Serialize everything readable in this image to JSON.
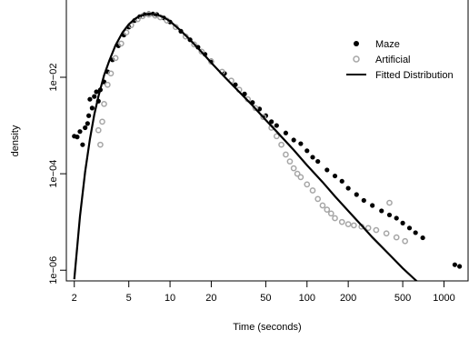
{
  "chart_data": {
    "type": "scatter",
    "xlabel": "Time (seconds)",
    "ylabel": "density",
    "x_scale": "log",
    "y_scale": "log",
    "xlim": [
      1.75,
      1500
    ],
    "ylim": [
      6e-07,
      0.4
    ],
    "x_ticks": [
      2,
      5,
      10,
      20,
      50,
      100,
      200,
      500,
      1000
    ],
    "x_tick_labels": [
      "2",
      "5",
      "10",
      "20",
      "50",
      "100",
      "200",
      "500",
      "1000"
    ],
    "y_ticks": [
      1e-06,
      0.0001,
      0.01
    ],
    "y_tick_labels": [
      "1e−06",
      "1e−04",
      "1e−02"
    ],
    "legend": {
      "position": "top-right",
      "entries": [
        "Maze",
        "Artificial",
        "Fitted Distribution"
      ]
    },
    "series": [
      {
        "name": "Maze",
        "marker": "filled-circle",
        "color": "#000000",
        "points": [
          [
            2,
            0.0006
          ],
          [
            2.1,
            0.00058
          ],
          [
            2.2,
            0.00075
          ],
          [
            2.3,
            0.0004
          ],
          [
            2.4,
            0.0009
          ],
          [
            2.5,
            0.0011
          ],
          [
            2.55,
            0.0016
          ],
          [
            2.6,
            0.0035
          ],
          [
            2.7,
            0.0023
          ],
          [
            2.8,
            0.004
          ],
          [
            2.9,
            0.005
          ],
          [
            3.0,
            0.0032
          ],
          [
            3.1,
            0.0055
          ],
          [
            3.3,
            0.008
          ],
          [
            3.5,
            0.013
          ],
          [
            3.8,
            0.023
          ],
          [
            4.2,
            0.045
          ],
          [
            4.6,
            0.075
          ],
          [
            5.0,
            0.11
          ],
          [
            5.5,
            0.15
          ],
          [
            6.0,
            0.18
          ],
          [
            6.5,
            0.2
          ],
          [
            7.0,
            0.21
          ],
          [
            7.5,
            0.205
          ],
          [
            8.0,
            0.2
          ],
          [
            9.0,
            0.17
          ],
          [
            10,
            0.14
          ],
          [
            12,
            0.09
          ],
          [
            14,
            0.06
          ],
          [
            16,
            0.042
          ],
          [
            18,
            0.03
          ],
          [
            20,
            0.022
          ],
          [
            25,
            0.012
          ],
          [
            30,
            0.007
          ],
          [
            35,
            0.0045
          ],
          [
            40,
            0.003
          ],
          [
            45,
            0.0022
          ],
          [
            50,
            0.0016
          ],
          [
            55,
            0.0012
          ],
          [
            60,
            0.001
          ],
          [
            70,
            0.0007
          ],
          [
            80,
            0.0005
          ],
          [
            90,
            0.00042
          ],
          [
            100,
            0.0003
          ],
          [
            110,
            0.00022
          ],
          [
            120,
            0.00018
          ],
          [
            140,
            0.00012
          ],
          [
            160,
            9e-05
          ],
          [
            180,
            7e-05
          ],
          [
            200,
            5e-05
          ],
          [
            230,
            3.7e-05
          ],
          [
            260,
            2.8e-05
          ],
          [
            300,
            2.2e-05
          ],
          [
            350,
            1.7e-05
          ],
          [
            400,
            1.4e-05
          ],
          [
            450,
            1.2e-05
          ],
          [
            500,
            9.5e-06
          ],
          [
            560,
            7.5e-06
          ],
          [
            620,
            6e-06
          ],
          [
            700,
            4.7e-06
          ],
          [
            1200,
            1.3e-06
          ],
          [
            1300,
            1.2e-06
          ]
        ]
      },
      {
        "name": "Artificial",
        "marker": "open-circle",
        "color": "#a6a6a6",
        "points": [
          [
            3.0,
            0.0008
          ],
          [
            3.1,
            0.0004
          ],
          [
            3.2,
            0.0012
          ],
          [
            3.3,
            0.0028
          ],
          [
            3.5,
            0.007
          ],
          [
            3.7,
            0.012
          ],
          [
            4.0,
            0.025
          ],
          [
            4.4,
            0.05
          ],
          [
            4.8,
            0.085
          ],
          [
            5.2,
            0.12
          ],
          [
            5.8,
            0.16
          ],
          [
            6.3,
            0.185
          ],
          [
            7.0,
            0.2
          ],
          [
            7.8,
            0.19
          ],
          [
            8.5,
            0.175
          ],
          [
            9.5,
            0.15
          ],
          [
            11,
            0.11
          ],
          [
            13,
            0.07
          ],
          [
            15,
            0.048
          ],
          [
            17,
            0.034
          ],
          [
            20,
            0.021
          ],
          [
            24,
            0.013
          ],
          [
            28,
            0.0085
          ],
          [
            32,
            0.0055
          ],
          [
            37,
            0.0035
          ],
          [
            42,
            0.0023
          ],
          [
            48,
            0.0015
          ],
          [
            55,
            0.0009
          ],
          [
            60,
            0.0006
          ],
          [
            65,
            0.0004
          ],
          [
            70,
            0.00025
          ],
          [
            75,
            0.00018
          ],
          [
            80,
            0.00013
          ],
          [
            85,
            0.0001
          ],
          [
            90,
            8.5e-05
          ],
          [
            100,
            6e-05
          ],
          [
            110,
            4.5e-05
          ],
          [
            120,
            3e-05
          ],
          [
            130,
            2.2e-05
          ],
          [
            140,
            1.8e-05
          ],
          [
            150,
            1.5e-05
          ],
          [
            160,
            1.2e-05
          ],
          [
            180,
            1e-05
          ],
          [
            200,
            9e-06
          ],
          [
            220,
            8.5e-06
          ],
          [
            250,
            8e-06
          ],
          [
            280,
            7.5e-06
          ],
          [
            320,
            6.8e-06
          ],
          [
            380,
            5.8e-06
          ],
          [
            400,
            2.5e-05
          ],
          [
            450,
            4.8e-06
          ],
          [
            520,
            4e-06
          ]
        ]
      }
    ],
    "fitted_curve": {
      "name": "Fitted Distribution",
      "color": "#000000",
      "points": [
        [
          2.0,
          6.5e-07
        ],
        [
          2.2,
          1.3e-05
        ],
        [
          2.4,
          0.00011
        ],
        [
          2.6,
          0.00052
        ],
        [
          2.8,
          0.0017
        ],
        [
          3.0,
          0.004
        ],
        [
          3.3,
          0.011
        ],
        [
          3.6,
          0.022
        ],
        [
          4.0,
          0.046
        ],
        [
          4.5,
          0.085
        ],
        [
          5.0,
          0.125
        ],
        [
          5.5,
          0.16
        ],
        [
          6.0,
          0.185
        ],
        [
          6.5,
          0.2
        ],
        [
          7.0,
          0.207
        ],
        [
          7.5,
          0.206
        ],
        [
          8.0,
          0.2
        ],
        [
          9.0,
          0.175
        ],
        [
          10,
          0.145
        ],
        [
          12,
          0.092
        ],
        [
          14,
          0.06
        ],
        [
          16,
          0.04
        ],
        [
          18,
          0.028
        ],
        [
          20,
          0.02
        ],
        [
          25,
          0.0102
        ],
        [
          30,
          0.006
        ],
        [
          40,
          0.0026
        ],
        [
          50,
          0.0013
        ],
        [
          60,
          0.00075
        ],
        [
          80,
          0.00031
        ],
        [
          100,
          0.00015
        ],
        [
          130,
          6.7e-05
        ],
        [
          160,
          3.4e-05
        ],
        [
          200,
          1.7e-05
        ],
        [
          250,
          8.5e-06
        ],
        [
          300,
          4.8e-06
        ],
        [
          400,
          2.1e-06
        ],
        [
          500,
          1.1e-06
        ],
        [
          600,
          6.8e-07
        ],
        [
          700,
          4.6e-07
        ],
        [
          800,
          3.4e-07
        ]
      ]
    }
  }
}
